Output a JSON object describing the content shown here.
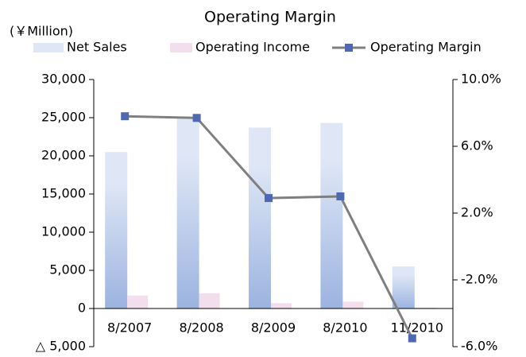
{
  "chart_data": {
    "type": "bar_line",
    "title": "Operating Margin",
    "y_label": "(￥Million)",
    "categories": [
      "8/2007",
      "8/2008",
      "8/2009",
      "8/2010",
      "11/2010"
    ],
    "series": [
      {
        "name": "Net Sales",
        "type": "bar",
        "color": "#dfe7f6",
        "values": [
          20500,
          25000,
          23700,
          24300,
          5500
        ]
      },
      {
        "name": "Operating Income",
        "type": "bar",
        "color": "#f2deec",
        "values": [
          1700,
          2000,
          700,
          900,
          100
        ]
      },
      {
        "name": "Operating Margin",
        "type": "line",
        "axis": "y2",
        "color": "#7f7f7f",
        "marker_color": "#4f68b4",
        "values": [
          7.8,
          7.7,
          2.9,
          3.0,
          -5.5
        ]
      }
    ],
    "ylim": [
      -5000,
      30000
    ],
    "yticks": [
      {
        "value": -5000,
        "label": "△ 5,000"
      },
      0,
      {
        "value": 5000,
        "label": "5,000"
      },
      {
        "value": 10000,
        "label": "10,000"
      },
      {
        "value": 15000,
        "label": "15,000"
      },
      {
        "value": 20000,
        "label": "20,000"
      },
      {
        "value": 25000,
        "label": "25,000"
      },
      {
        "value": 30000,
        "label": "30,000"
      }
    ],
    "y2lim": [
      -6,
      10
    ],
    "y2ticks": [
      {
        "value": -6,
        "label": "-6.0%"
      },
      {
        "value": -2,
        "label": "-2.0%"
      },
      {
        "value": 2,
        "label": "2.0%"
      },
      {
        "value": 6,
        "label": "6.0%"
      },
      {
        "value": 10,
        "label": "10.0%"
      }
    ],
    "grid": false
  }
}
